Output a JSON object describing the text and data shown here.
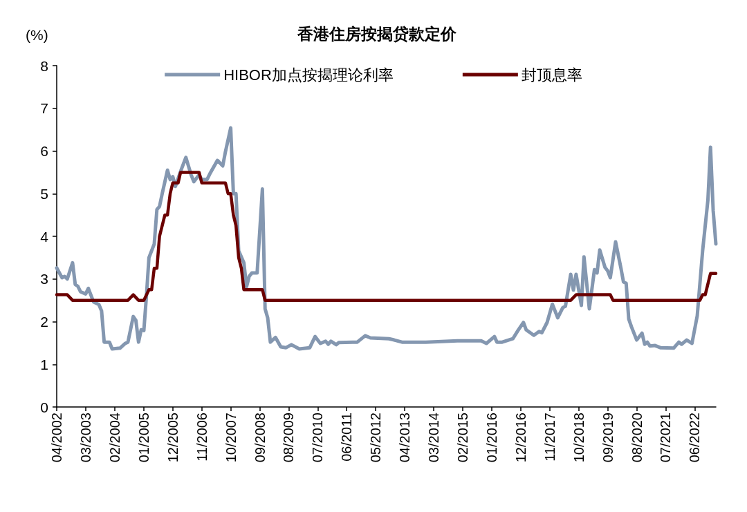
{
  "chart_data": {
    "type": "line",
    "title": "香港住房按揭贷款定价",
    "ylabel": "(%)",
    "xlim": [
      "2002-04",
      "2023-02"
    ],
    "ylim": [
      0,
      8
    ],
    "yticks": [
      0,
      1,
      2,
      3,
      4,
      5,
      6,
      7,
      8
    ],
    "xticks": [
      {
        "value": "2002-04",
        "label": "04/2002"
      },
      {
        "value": "2003-03",
        "label": "03/2003"
      },
      {
        "value": "2004-02",
        "label": "02/2004"
      },
      {
        "value": "2005-01",
        "label": "01/2005"
      },
      {
        "value": "2005-12",
        "label": "12/2005"
      },
      {
        "value": "2006-11",
        "label": "11/2006"
      },
      {
        "value": "2007-10",
        "label": "10/2007"
      },
      {
        "value": "2008-09",
        "label": "09/2008"
      },
      {
        "value": "2009-08",
        "label": "08/2009"
      },
      {
        "value": "2010-07",
        "label": "07/2010"
      },
      {
        "value": "2011-06",
        "label": "06/2011"
      },
      {
        "value": "2012-05",
        "label": "05/2012"
      },
      {
        "value": "2013-04",
        "label": "04/2013"
      },
      {
        "value": "2014-03",
        "label": "03/2014"
      },
      {
        "value": "2015-02",
        "label": "02/2015"
      },
      {
        "value": "2016-01",
        "label": "01/2016"
      },
      {
        "value": "2016-12",
        "label": "12/2016"
      },
      {
        "value": "2017-11",
        "label": "11/2017"
      },
      {
        "value": "2018-10",
        "label": "10/2018"
      },
      {
        "value": "2019-09",
        "label": "09/2019"
      },
      {
        "value": "2020-08",
        "label": "08/2020"
      },
      {
        "value": "2021-07",
        "label": "07/2021"
      },
      {
        "value": "2022-06",
        "label": "06/2022"
      }
    ],
    "grid": false,
    "legend": "top",
    "marker": "none",
    "line_style": "solid",
    "series": [
      {
        "name": "HIBOR加点按揭理论利率",
        "color": "#8497b0",
        "x": [
          "2002-04",
          "2002-06",
          "2002-07",
          "2002-08",
          "2002-10",
          "2002-11",
          "2002-12",
          "2003-01",
          "2003-03",
          "2003-04",
          "2003-06",
          "2003-08",
          "2003-09",
          "2003-10",
          "2003-12",
          "2004-01",
          "2004-04",
          "2004-06",
          "2004-07",
          "2004-09",
          "2004-10",
          "2004-11",
          "2004-12",
          "2005-01",
          "2005-02",
          "2005-03",
          "2005-05",
          "2005-06",
          "2005-07",
          "2005-08",
          "2005-10",
          "2005-11",
          "2005-12",
          "2006-01",
          "2006-03",
          "2006-05",
          "2006-07",
          "2006-08",
          "2006-10",
          "2006-11",
          "2007-01",
          "2007-02",
          "2007-05",
          "2007-07",
          "2007-08",
          "2007-10",
          "2007-11",
          "2007-12",
          "2008-01",
          "2008-03",
          "2008-04",
          "2008-05",
          "2008-06",
          "2008-08",
          "2008-10",
          "2008-11",
          "2008-12",
          "2009-01",
          "2009-03",
          "2009-05",
          "2009-07",
          "2009-09",
          "2009-12",
          "2010-04",
          "2010-06",
          "2010-08",
          "2010-10",
          "2010-11",
          "2010-12",
          "2011-02",
          "2011-03",
          "2011-10",
          "2012-01",
          "2012-03",
          "2012-10",
          "2012-12",
          "2013-03",
          "2013-12",
          "2014-12",
          "2015-09",
          "2015-11",
          "2016-02",
          "2016-03",
          "2016-05",
          "2016-09",
          "2016-11",
          "2017-01",
          "2017-02",
          "2017-05",
          "2017-07",
          "2017-08",
          "2017-10",
          "2017-12",
          "2018-02",
          "2018-04",
          "2018-05",
          "2018-07",
          "2018-08",
          "2018-09",
          "2018-11",
          "2018-12",
          "2019-02",
          "2019-04",
          "2019-05",
          "2019-06",
          "2019-08",
          "2019-09",
          "2019-10",
          "2019-12",
          "2020-02",
          "2020-03",
          "2020-04",
          "2020-05",
          "2020-06",
          "2020-08",
          "2020-10",
          "2020-11",
          "2020-12",
          "2021-01",
          "2021-03",
          "2021-05",
          "2021-10",
          "2021-12",
          "2022-01",
          "2022-03",
          "2022-05",
          "2022-07",
          "2022-09",
          "2022-11",
          "2022-12",
          "2023-01",
          "2023-02"
        ],
        "values": [
          3.26,
          3.03,
          3.06,
          3.0,
          3.38,
          2.87,
          2.83,
          2.7,
          2.65,
          2.78,
          2.46,
          2.4,
          2.25,
          1.52,
          1.52,
          1.36,
          1.38,
          1.49,
          1.52,
          2.12,
          2.03,
          1.52,
          1.81,
          1.79,
          2.63,
          3.5,
          3.82,
          4.63,
          4.7,
          5.0,
          5.55,
          5.33,
          5.4,
          5.17,
          5.52,
          5.85,
          5.44,
          5.28,
          5.44,
          5.33,
          5.33,
          5.46,
          5.78,
          5.65,
          5.98,
          6.54,
          5.0,
          5.0,
          3.66,
          3.38,
          2.82,
          3.06,
          3.14,
          3.14,
          5.11,
          2.3,
          2.09,
          1.52,
          1.63,
          1.41,
          1.39,
          1.46,
          1.36,
          1.39,
          1.65,
          1.49,
          1.54,
          1.47,
          1.54,
          1.46,
          1.51,
          1.52,
          1.67,
          1.62,
          1.6,
          1.57,
          1.52,
          1.52,
          1.55,
          1.55,
          1.49,
          1.65,
          1.52,
          1.52,
          1.6,
          1.8,
          1.98,
          1.81,
          1.68,
          1.77,
          1.74,
          1.98,
          2.41,
          2.09,
          2.33,
          2.36,
          3.11,
          2.74,
          3.11,
          2.38,
          3.52,
          2.3,
          3.22,
          3.14,
          3.68,
          3.27,
          3.19,
          3.03,
          3.87,
          3.25,
          2.93,
          2.9,
          2.06,
          1.88,
          1.57,
          1.73,
          1.47,
          1.52,
          1.43,
          1.44,
          1.39,
          1.38,
          1.52,
          1.47,
          1.57,
          1.49,
          2.14,
          3.66,
          4.85,
          6.09,
          4.6,
          3.82
        ]
      },
      {
        "name": "封顶息率",
        "color": "#6b0000",
        "x": [
          "2002-04",
          "2002-08",
          "2002-10",
          "2004-07",
          "2004-09",
          "2004-11",
          "2005-01",
          "2005-03",
          "2005-04",
          "2005-05",
          "2005-06",
          "2005-07",
          "2005-09",
          "2005-10",
          "2005-11",
          "2005-12",
          "2006-02",
          "2006-03",
          "2006-10",
          "2006-11",
          "2007-08",
          "2007-09",
          "2007-10",
          "2007-11",
          "2007-12",
          "2008-01",
          "2008-02",
          "2008-03",
          "2008-10",
          "2008-11",
          "2018-07",
          "2018-09",
          "2019-10",
          "2019-11",
          "2022-08",
          "2022-09",
          "2022-10",
          "2022-12",
          "2023-02"
        ],
        "values": [
          2.63,
          2.63,
          2.5,
          2.5,
          2.63,
          2.5,
          2.5,
          2.75,
          2.75,
          3.25,
          3.25,
          4.0,
          4.5,
          4.5,
          5.0,
          5.25,
          5.25,
          5.5,
          5.5,
          5.25,
          5.25,
          5.0,
          5.0,
          4.5,
          4.25,
          3.5,
          3.25,
          2.75,
          2.75,
          2.5,
          2.5,
          2.63,
          2.63,
          2.5,
          2.5,
          2.63,
          2.63,
          3.13,
          3.13
        ]
      }
    ]
  }
}
